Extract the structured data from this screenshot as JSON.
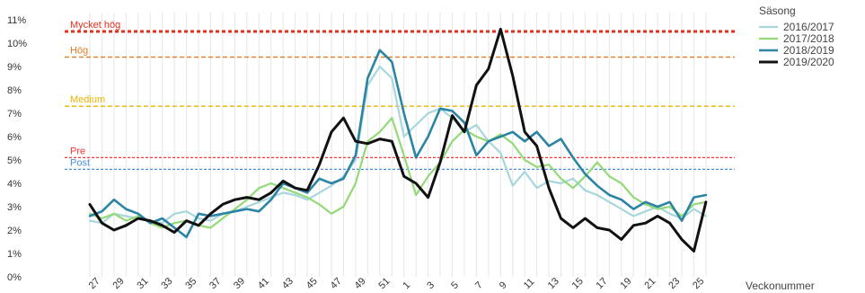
{
  "chart_data": {
    "type": "line",
    "xlabel": "Veckonummer",
    "ylabel": "",
    "y_axis": {
      "min": 0,
      "max": 11,
      "tick_step": 1,
      "tick_suffix": "%"
    },
    "x_positions": [
      27,
      28,
      29,
      30,
      31,
      32,
      33,
      34,
      35,
      36,
      37,
      38,
      39,
      40,
      41,
      42,
      43,
      44,
      45,
      46,
      47,
      48,
      49,
      50,
      51,
      52,
      1,
      2,
      3,
      4,
      5,
      6,
      7,
      8,
      9,
      10,
      11,
      12,
      13,
      14,
      15,
      16,
      17,
      18,
      19,
      20,
      21,
      22,
      23,
      24,
      25,
      26
    ],
    "x_tick_labels": [
      "27",
      "29",
      "31",
      "33",
      "35",
      "37",
      "39",
      "41",
      "43",
      "45",
      "47",
      "49",
      "51",
      "1",
      "3",
      "5",
      "7",
      "9",
      "11",
      "13",
      "15",
      "17",
      "19",
      "21",
      "23",
      "25"
    ],
    "grid": {
      "vertical": true,
      "horizontal": false
    },
    "legend": {
      "title": "Säsong",
      "placement": "top-right"
    },
    "thresholds": [
      {
        "label": "Mycket hög",
        "value": 10.5,
        "color": "#e0301e"
      },
      {
        "label": "Hög",
        "value": 9.4,
        "color": "#e07a20"
      },
      {
        "label": "Medium",
        "value": 7.3,
        "color": "#e8b400"
      },
      {
        "label": "Pre",
        "value": 5.1,
        "color": "#ff3333"
      },
      {
        "label": "Post",
        "value": 4.6,
        "color": "#4a90e2"
      }
    ],
    "series": [
      {
        "name": "2016/2017",
        "color": "#a7d7dc",
        "width": 2.2,
        "values": [
          2.4,
          2.3,
          2.7,
          2.6,
          2.5,
          2.4,
          2.3,
          2.7,
          2.8,
          2.5,
          2.4,
          2.7,
          2.8,
          3.0,
          3.2,
          3.4,
          3.6,
          3.5,
          3.3,
          3.6,
          3.9,
          4.3,
          5.0,
          8.2,
          9.0,
          8.5,
          6.0,
          6.5,
          7.0,
          7.2,
          6.8,
          6.2,
          6.5,
          5.8,
          5.3,
          3.9,
          4.5,
          3.8,
          4.1,
          4.0,
          4.2,
          3.7,
          3.5,
          3.2,
          2.9,
          2.6,
          2.8,
          3.0,
          2.7,
          2.5,
          2.9,
          2.6
        ]
      },
      {
        "name": "2017/2018",
        "color": "#94d978",
        "width": 2.2,
        "values": [
          2.7,
          2.5,
          2.7,
          2.4,
          2.6,
          2.3,
          2.1,
          2.3,
          2.4,
          2.2,
          2.1,
          2.5,
          2.9,
          3.3,
          3.8,
          4.0,
          3.8,
          3.6,
          3.4,
          3.1,
          2.7,
          3.0,
          4.0,
          5.8,
          6.2,
          6.8,
          5.2,
          3.5,
          4.3,
          4.9,
          5.8,
          6.3,
          6.0,
          5.8,
          6.1,
          5.7,
          5.0,
          4.7,
          4.8,
          4.2,
          3.8,
          4.3,
          4.9,
          4.3,
          4.0,
          3.4,
          3.1,
          2.9,
          3.0,
          2.6,
          3.1,
          3.2
        ]
      },
      {
        "name": "2018/2019",
        "color": "#2b84a3",
        "width": 2.6,
        "values": [
          2.6,
          2.8,
          3.3,
          2.9,
          2.7,
          2.3,
          2.5,
          2.1,
          1.7,
          2.7,
          2.6,
          2.7,
          2.8,
          2.9,
          2.8,
          3.3,
          4.0,
          3.8,
          3.6,
          4.2,
          4.0,
          4.2,
          5.2,
          8.5,
          9.7,
          9.2,
          7.0,
          5.1,
          6.0,
          7.2,
          7.1,
          6.6,
          5.2,
          5.8,
          6.0,
          6.2,
          5.8,
          6.2,
          5.6,
          5.9,
          5.1,
          4.4,
          3.9,
          3.5,
          3.3,
          2.9,
          3.2,
          3.0,
          3.2,
          2.4,
          3.4,
          3.5
        ]
      },
      {
        "name": "2019/2020",
        "color": "#111111",
        "width": 3.0,
        "values": [
          3.1,
          2.3,
          2.0,
          2.2,
          2.5,
          2.4,
          2.2,
          1.9,
          2.4,
          2.2,
          2.7,
          3.1,
          3.3,
          3.4,
          3.3,
          3.6,
          4.1,
          3.8,
          3.7,
          4.8,
          6.2,
          6.8,
          5.8,
          5.7,
          5.9,
          5.8,
          4.3,
          4.0,
          3.4,
          4.9,
          6.9,
          6.2,
          8.2,
          8.9,
          10.6,
          8.6,
          6.2,
          5.6,
          3.8,
          2.5,
          2.1,
          2.5,
          2.1,
          2.0,
          1.6,
          2.2,
          2.3,
          2.6,
          2.3,
          1.6,
          1.1,
          3.2
        ]
      }
    ]
  }
}
